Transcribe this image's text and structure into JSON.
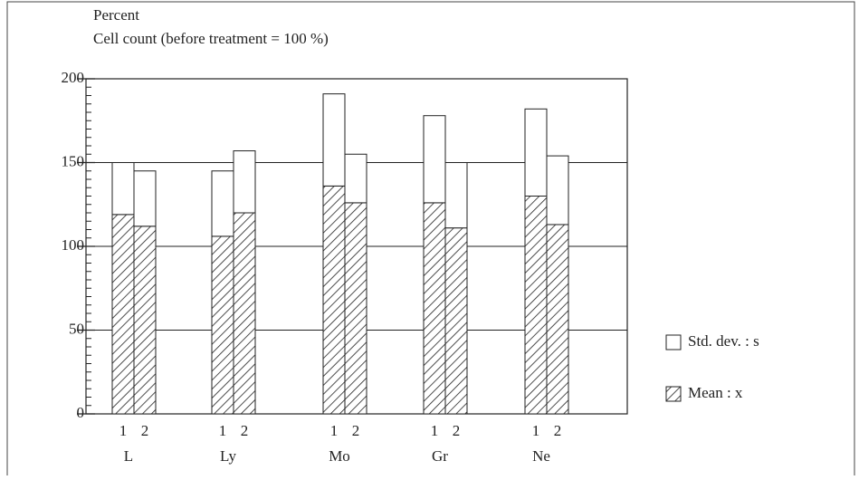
{
  "chart_data": {
    "type": "bar",
    "title": "Percent",
    "subtitle": "Cell count (before treatment = 100 %)",
    "categories": [
      "L",
      "Ly",
      "Mo",
      "Gr",
      "Ne"
    ],
    "subcategories": [
      "1",
      "2"
    ],
    "series": [
      {
        "name": "Mean : x",
        "color": "#ffffff",
        "hatch": true,
        "values": [
          [
            119,
            112
          ],
          [
            106,
            120
          ],
          [
            136,
            126
          ],
          [
            126,
            111
          ],
          [
            130,
            113
          ]
        ]
      },
      {
        "name": "Std. dev. : s",
        "color": "#ffffff",
        "hatch": false,
        "values": [
          [
            31,
            33
          ],
          [
            39,
            37
          ],
          [
            55,
            29
          ],
          [
            52,
            39
          ],
          [
            52,
            41
          ]
        ]
      }
    ],
    "stacked": true,
    "ylim": [
      0,
      200
    ],
    "yticks": [
      0,
      50,
      100,
      150,
      200
    ],
    "grid": true,
    "legend": "right"
  }
}
